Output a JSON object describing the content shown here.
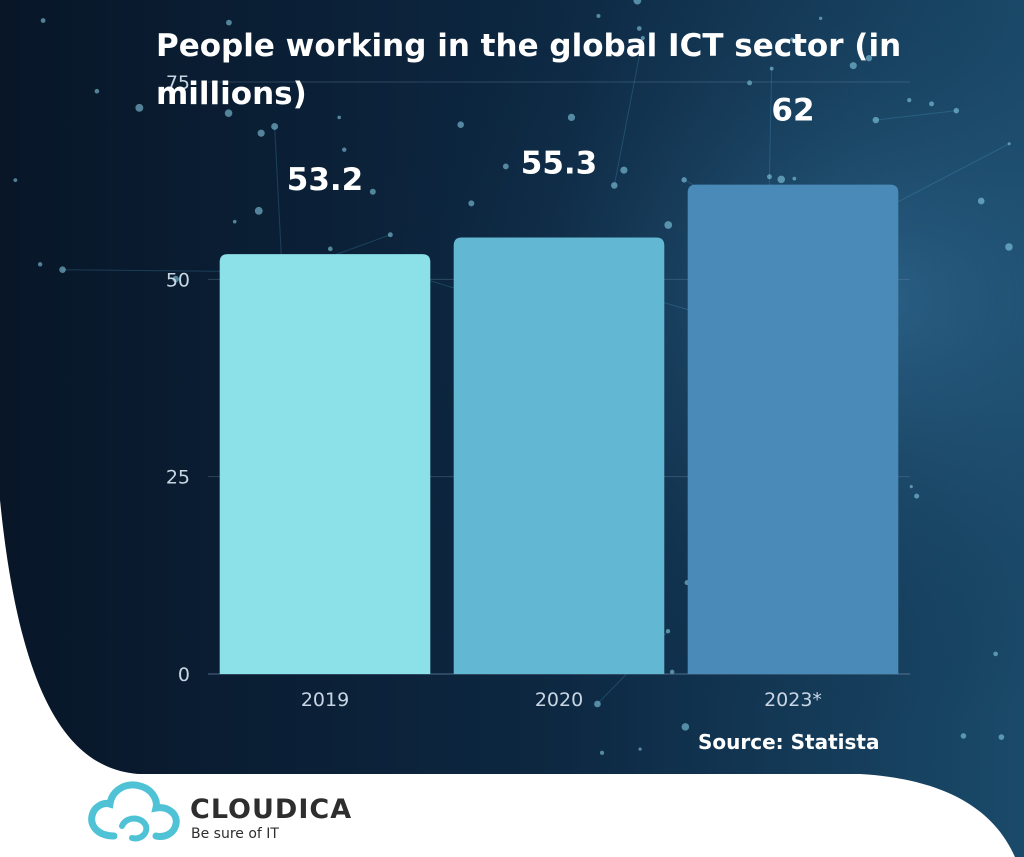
{
  "chart_data": {
    "type": "bar",
    "title": "People working in the global ICT sector (in millions)",
    "categories": [
      "2019",
      "2020",
      "2023*"
    ],
    "values": [
      53.2,
      55.3,
      62
    ],
    "value_labels": [
      "53.2",
      "55.3",
      "62"
    ],
    "ylim": [
      0,
      75
    ],
    "yticks": [
      0,
      25,
      50,
      75
    ],
    "grid": true,
    "colors": [
      "#8ce0e8",
      "#62b7d3",
      "#4a8ab8"
    ]
  },
  "source": "Source: Statista",
  "brand": {
    "name": "CLOUDICA",
    "tagline": "Be sure of IT",
    "color": "#4fc3d5"
  },
  "background": {
    "dark": "#0a1a30",
    "accent": "#2a5a85"
  }
}
